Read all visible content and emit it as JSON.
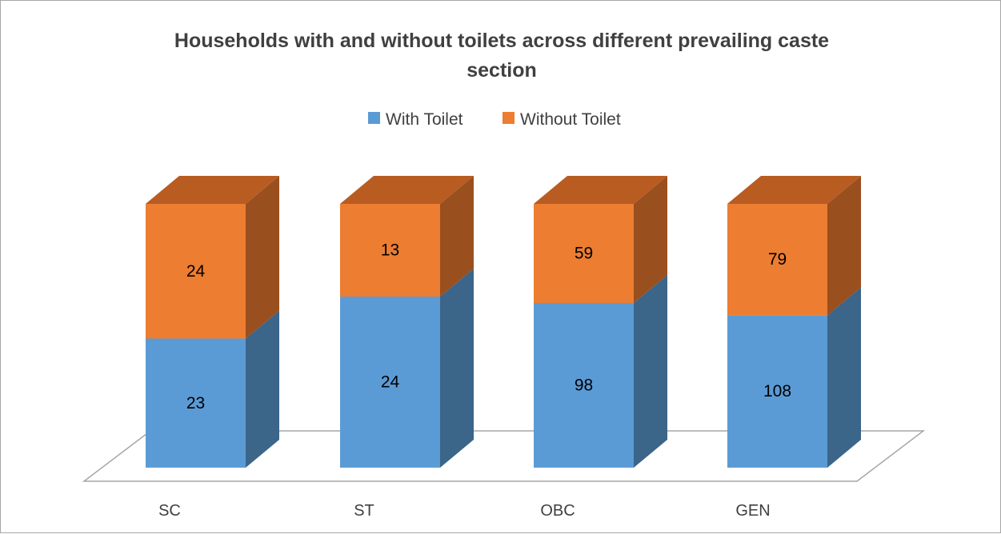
{
  "colors": {
    "with_front": "#5b9bd5",
    "with_side": "#3b6589",
    "with_top": "#6fa8dc",
    "without_front": "#ed7d31",
    "without_side": "#9a4f1f",
    "without_top": "#b85c22",
    "floor": "#a6a6a6",
    "text": "#404040"
  },
  "chart_data": {
    "type": "bar",
    "stacked": true,
    "style": "3d-stacked-column",
    "title_lines": [
      "Households with and without toilets across different prevailing caste",
      "section"
    ],
    "categories": [
      "SC",
      "ST",
      "OBC",
      "GEN"
    ],
    "series": [
      {
        "name": "With Toilet",
        "values": [
          23,
          24,
          98,
          108
        ]
      },
      {
        "name": "Without Toilet",
        "values": [
          24,
          13,
          59,
          79
        ]
      }
    ],
    "percent_stacked": true,
    "legend_position": "top",
    "grid": false,
    "show_value_axis": false
  }
}
